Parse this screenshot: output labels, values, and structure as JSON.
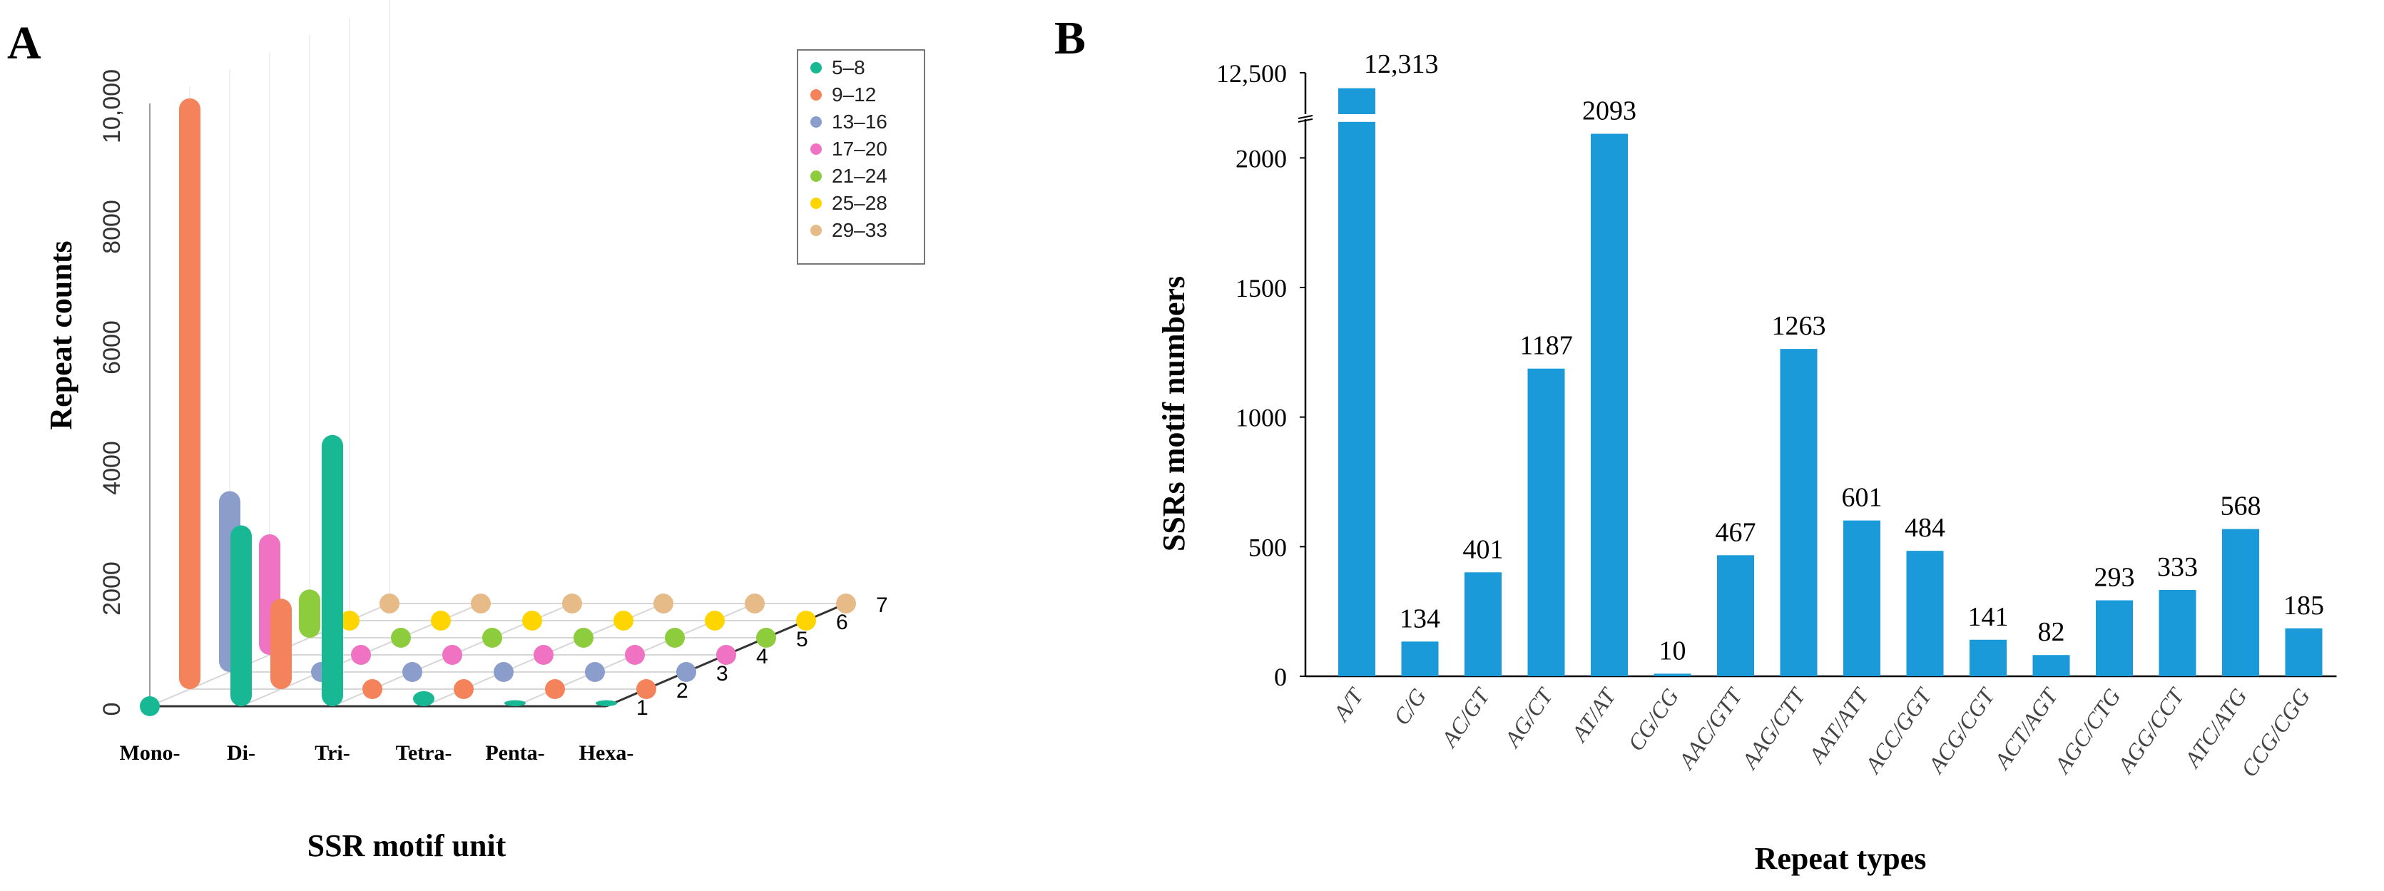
{
  "panels": {
    "a": {
      "letter": "A",
      "ylabel": "Repeat counts",
      "xlabel": "SSR motif unit"
    },
    "b": {
      "letter": "B",
      "ylabel": "SSRs motif numbers",
      "xlabel": "Repeat types"
    }
  },
  "chart_data": [
    {
      "type": "bar",
      "projection": "3d",
      "xlabel": "SSR motif unit",
      "ylabel": "Repeat counts",
      "categories": [
        "Mono-",
        "Di-",
        "Tri-",
        "Tetra-",
        "Penta-",
        "Hexa-"
      ],
      "depth_ticks": [
        "1",
        "2",
        "3",
        "4",
        "5",
        "6",
        "7"
      ],
      "y_ticks": [
        "0",
        "2000",
        "4000",
        "6000",
        "8000",
        "10,000"
      ],
      "ylim": [
        0,
        10000
      ],
      "legend_position": "top-right",
      "grid": true,
      "series": [
        {
          "name": "5–8",
          "color": "#19b895",
          "values": [
            0,
            3000,
            4500,
            250,
            100,
            100
          ]
        },
        {
          "name": "9–12",
          "color": "#f4835c",
          "values": [
            9800,
            1500,
            80,
            60,
            60,
            60
          ]
        },
        {
          "name": "13–16",
          "color": "#8b9dcb",
          "values": [
            3000,
            80,
            60,
            60,
            60,
            60
          ]
        },
        {
          "name": "17–20",
          "color": "#ef73c2",
          "values": [
            2000,
            60,
            50,
            50,
            50,
            50
          ]
        },
        {
          "name": "21–24",
          "color": "#8ccc3d",
          "values": [
            800,
            50,
            50,
            50,
            50,
            50
          ]
        },
        {
          "name": "25–28",
          "color": "#ffd500",
          "values": [
            50,
            50,
            50,
            50,
            50,
            50
          ]
        },
        {
          "name": "29–33",
          "color": "#e6bb88",
          "values": [
            50,
            50,
            50,
            50,
            50,
            50
          ]
        }
      ]
    },
    {
      "type": "bar",
      "xlabel": "Repeat types",
      "ylabel": "SSRs motif numbers",
      "categories": [
        "A/T",
        "C/G",
        "AC/GT",
        "AG/CT",
        "AT/AT",
        "CG/CG",
        "AAC/GTT",
        "AAG/CTT",
        "AAT/ATT",
        "ACC/GGT",
        "ACG/CGT",
        "ACT/AGT",
        "AGC/CTG",
        "AGG/CCT",
        "ATC/ATG",
        "CCG/CGG"
      ],
      "values": [
        12313,
        134,
        401,
        1187,
        2093,
        10,
        467,
        1263,
        601,
        484,
        141,
        82,
        293,
        333,
        568,
        185
      ],
      "value_labels": [
        "12,313",
        "134",
        "401",
        "1187",
        "2093",
        "10",
        "467",
        "1263",
        "601",
        "484",
        "141",
        "82",
        "293",
        "333",
        "568",
        "185"
      ],
      "y_ticks": [
        "0",
        "500",
        "1000",
        "1500",
        "2000"
      ],
      "y_break_tick": "12,500",
      "ylim_lower": [
        0,
        2150
      ],
      "ylim_upper": [
        12000,
        12500
      ],
      "color": "#1a9ad8",
      "grid": false
    }
  ]
}
